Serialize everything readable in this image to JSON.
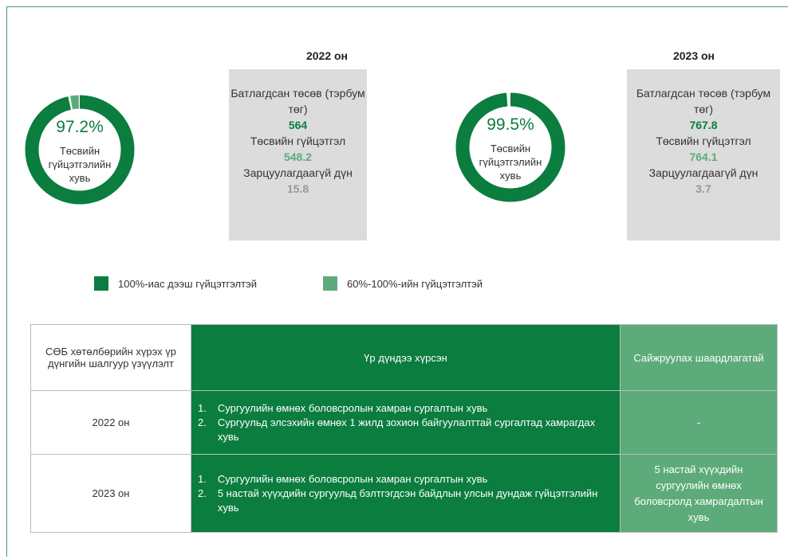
{
  "donuts": [
    {
      "year": "2022 он",
      "percent": 97.2,
      "percent_label": "97.2%",
      "caption": [
        "Төсвийн",
        "гүйцэтгэлийн",
        "хувь"
      ],
      "box": [
        {
          "label": "Батлагдсан төсөв (тэрбум төг)",
          "value": "564"
        },
        {
          "label": "Төсвийн гүйцэтгэл",
          "value": "548.2"
        },
        {
          "label": "Зарцуулагдаагүй дүн",
          "value": "15.8"
        }
      ]
    },
    {
      "year": "2023 он",
      "percent": 99.5,
      "percent_label": "99.5%",
      "caption": [
        "Төсвийн",
        "гүйцэтгэлийн",
        "хувь"
      ],
      "box": [
        {
          "label": "Батлагдсан төсөв (тэрбум төг)",
          "value": "767.8"
        },
        {
          "label": "Төсвийн гүйцэтгэл",
          "value": "764.1"
        },
        {
          "label": "Зарцуулагдаагүй дүн",
          "value": "3.7"
        }
      ]
    }
  ],
  "legend": [
    "100%-иас дээш гүйцэтгэлтэй",
    "60%-100%-ийн гүйцэтгэлтэй"
  ],
  "table": {
    "header": [
      "СӨБ хөтөлбөрийн хүрэх үр дүнгийн шалгуур үзүүлэлт",
      "Үр дүндээ хүрсэн",
      "Сайжруулах шаардлагатай"
    ],
    "rows": [
      {
        "year": "2022 он",
        "items": [
          {
            "marker": "1.",
            "text": "Сургуулийн өмнөх боловсролын хамран сургалтын хувь"
          },
          {
            "marker": "2.",
            "text": "Сургуульд элсэхийн өмнөх 1 жилд зохион байгуулалттай сургалтад хамрагдах хувь"
          }
        ],
        "improve": "-"
      },
      {
        "year": "2023 он",
        "items": [
          {
            "marker": "1.",
            "text": "Сургуулийн өмнөх боловсролын хамран сургалтын хувь"
          },
          {
            "marker": "2.",
            "text": "5 настай хүүхдийн сургуульд бэлтгэгдсэн байдлын улсын дундаж гүйцэтгэлийн хувь"
          }
        ],
        "improve": "5 настай хүүхдийн сургуулийн өмнөх боловсролд хамрагдалтын хувь"
      }
    ]
  }
}
